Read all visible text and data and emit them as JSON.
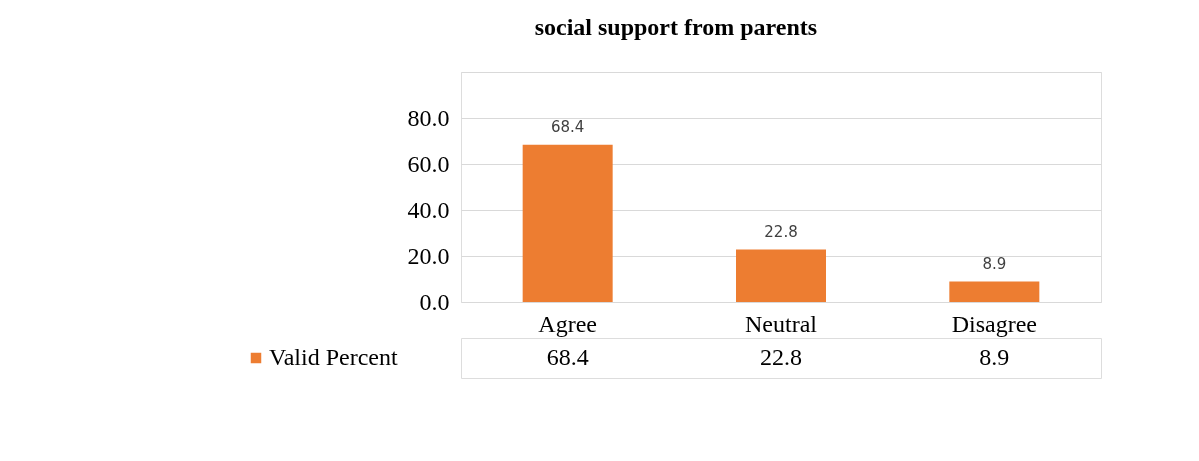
{
  "chart_data": {
    "type": "bar",
    "title": "social support from parents",
    "categories": [
      "Agree",
      "Neutral",
      "Disagree"
    ],
    "series": [
      {
        "name": "Valid Percent",
        "color": "#ed7d31",
        "values": [
          68.4,
          22.8,
          8.9
        ],
        "value_labels": [
          "68.4",
          "22.8",
          "8.9"
        ]
      }
    ],
    "ylim": [
      0,
      100
    ],
    "yticks": [
      {
        "value": 0,
        "label": "0.0"
      },
      {
        "value": 20,
        "label": "20.0"
      },
      {
        "value": 40,
        "label": "40.0"
      },
      {
        "value": 60,
        "label": "60.0"
      },
      {
        "value": 80,
        "label": "80.0"
      },
      {
        "value": 100,
        "label": null
      }
    ],
    "annotations": [
      "68.4",
      "22.8",
      "8.9"
    ],
    "grid": "y",
    "data_labels": true,
    "legend": "bottom"
  }
}
